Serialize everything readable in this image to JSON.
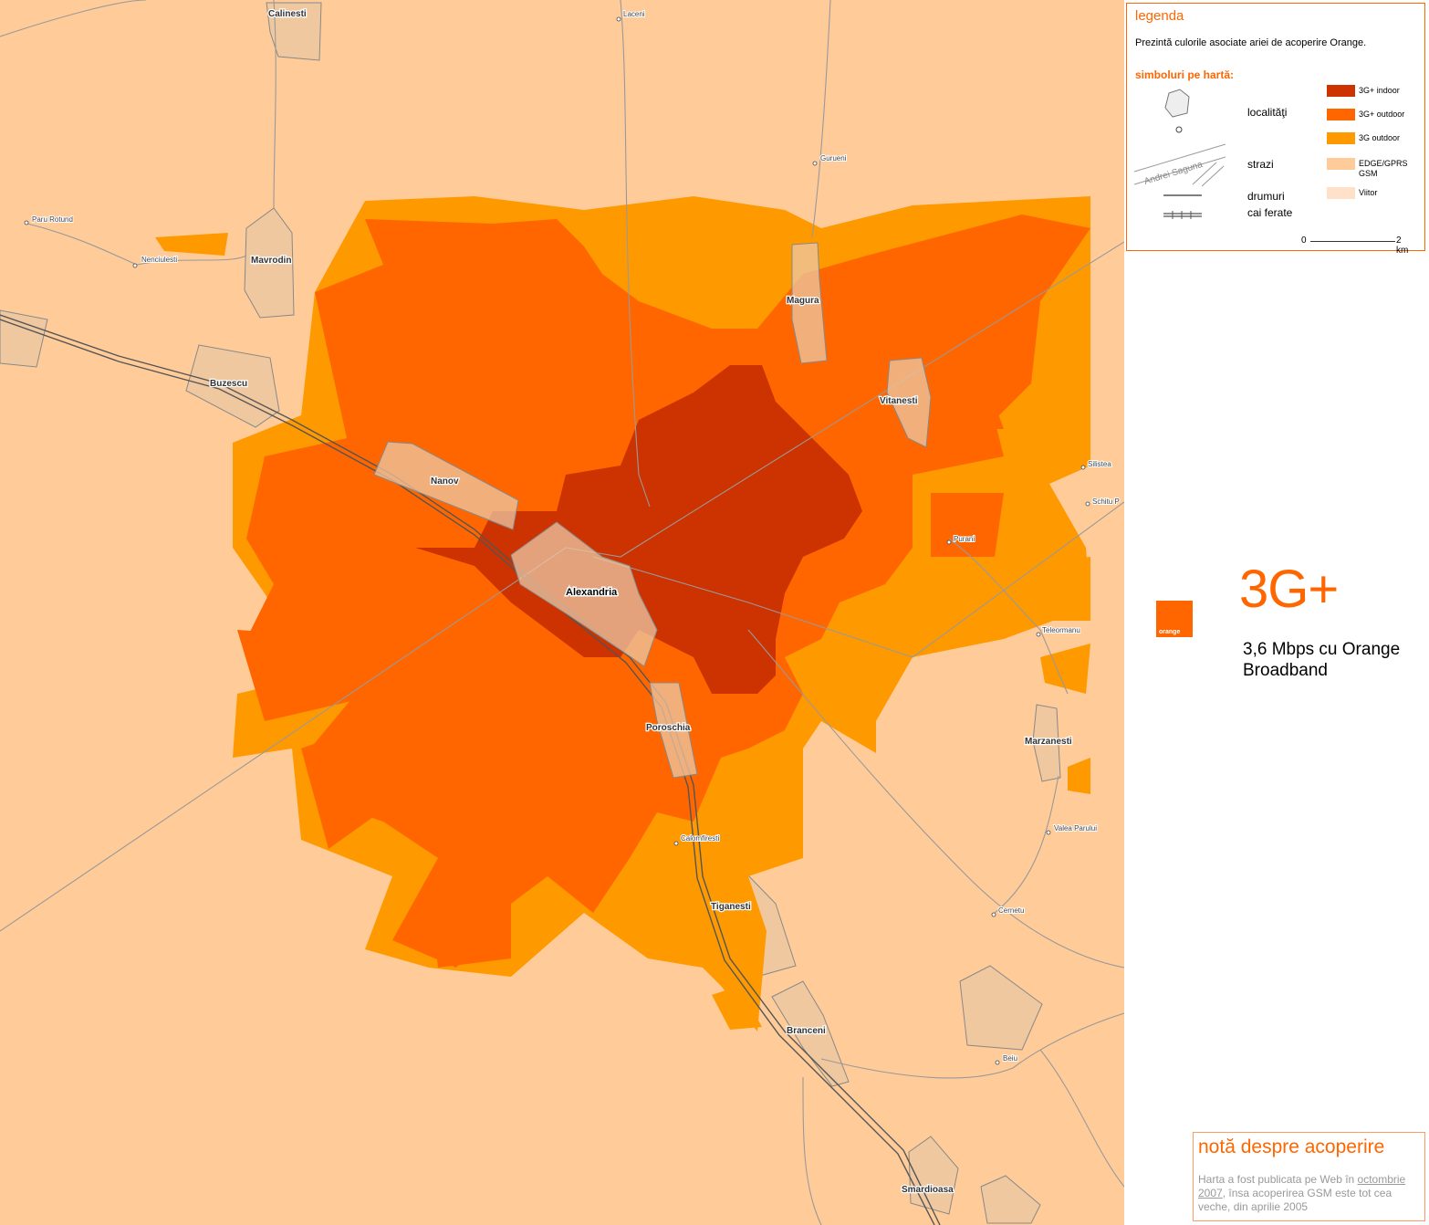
{
  "legend": {
    "title": "legenda",
    "description": "Prezintă culorile asociate ariei de acoperire Orange.",
    "symbols_heading": "simboluri pe hartă:",
    "localities_label": "localităţi",
    "street_label": "strazi",
    "street_sample": "Andrei Saguna",
    "roads_label": "drumuri",
    "railways_label": "cai ferate",
    "coverage": [
      {
        "label": "3G+ indoor",
        "color": "#cc3300"
      },
      {
        "label": "3G+ outdoor",
        "color": "#ff6600"
      },
      {
        "label": "3G outdoor",
        "color": "#ff9900"
      },
      {
        "label": "EDGE/GPRS GSM",
        "color": "#ffcc99"
      },
      {
        "label": "Viitor",
        "color": "#ffe0c8"
      }
    ],
    "scale_start": "0",
    "scale_end": "2 km"
  },
  "promo": {
    "logo_text": "orange",
    "headline": "3G+",
    "tagline": "3,6 Mbps cu Orange Broadband"
  },
  "note": {
    "title": "notă despre acoperire",
    "text_before": "Harta a fost publicata pe Web în ",
    "link_text": "octombrie 2007",
    "text_after": ", însa acoperirea GSM este tot cea veche, din aprilie 2005"
  },
  "map": {
    "towns": [
      "Calinesti",
      "Mavrodin",
      "Buzescu",
      "Nanov",
      "Alexandria",
      "Magura",
      "Vitanesti",
      "Poroschia",
      "Marzanesti",
      "Tiganesti",
      "Branceni",
      "Smardioasa"
    ],
    "villages": [
      "Laceni",
      "Paru Rotund",
      "Nenciulesti",
      "Gurueni",
      "Silistea",
      "Schitu P",
      "Purani",
      "Teleormanu",
      "Calomfiresti",
      "Valea Parului",
      "Cernetu",
      "Beiu"
    ]
  }
}
